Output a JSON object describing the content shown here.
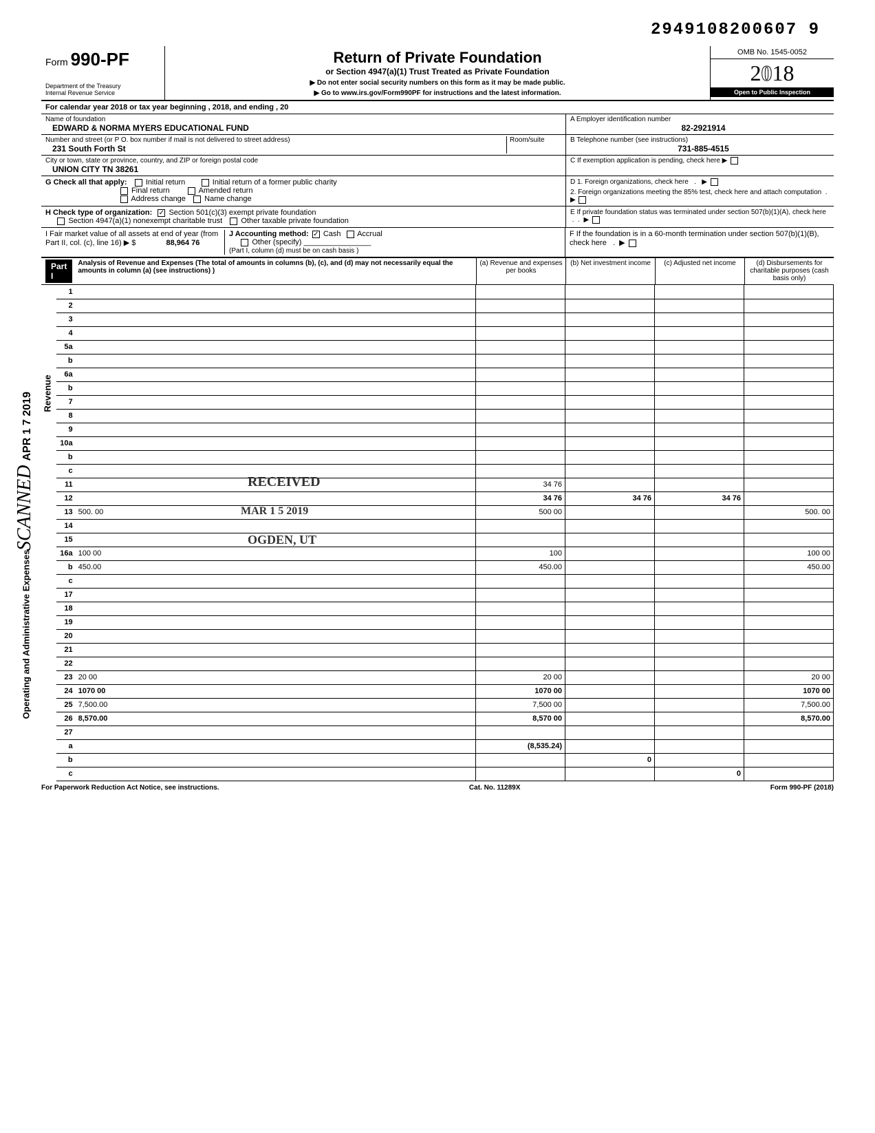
{
  "top_id": "2949108200607 9",
  "form": {
    "prefix": "Form",
    "number": "990-PF",
    "dept1": "Department of the Treasury",
    "dept2": "Internal Revenue Service",
    "title": "Return of Private Foundation",
    "subtitle": "or Section 4947(a)(1) Trust Treated as Private Foundation",
    "note1": "▶ Do not enter social security numbers on this form as it may be made public.",
    "note2": "▶ Go to www.irs.gov/Form990PF for instructions and the latest information.",
    "omb": "OMB No. 1545-0052",
    "year": "2018",
    "inspection": "Open to Public Inspection"
  },
  "calendar": "For calendar year 2018 or tax year beginning                                              , 2018, and ending                                    , 20",
  "foundation": {
    "name_label": "Name of foundation",
    "name": "EDWARD & NORMA MYERS EDUCATIONAL FUND",
    "addr_label": "Number and street (or P O. box number if mail is not delivered to street address)",
    "addr": "231 South Forth St",
    "room_label": "Room/suite",
    "city_label": "City or town, state or province, country, and ZIP or foreign postal code",
    "city": "UNION CITY          TN 38261",
    "ein_label": "A  Employer identification number",
    "ein": "82-2921914",
    "phone_label": "B  Telephone number (see instructions)",
    "phone": "731-885-4515",
    "c_label": "C  If exemption application is pending, check here ▶"
  },
  "sectionG": {
    "label": "G   Check all that apply:",
    "opts": [
      "Initial return",
      "Initial return of a former public charity",
      "Final return",
      "Amended return",
      "Address change",
      "Name change"
    ]
  },
  "sectionH": {
    "label": "H   Check type of organization:",
    "opt1": "Section 501(c)(3) exempt private foundation",
    "opt2": "Section 4947(a)(1) nonexempt charitable trust",
    "opt3": "Other taxable private foundation"
  },
  "sectionD": {
    "d1": "D  1. Foreign organizations, check here",
    "d2": "2. Foreign organizations meeting the 85% test, check here and attach computation",
    "e": "E  If private foundation status was terminated under section 507(b)(1)(A), check here",
    "f": "F  If the foundation is in a 60-month termination under section 507(b)(1)(B), check here"
  },
  "sectionI": {
    "i": "I    Fair market value of all assets at end of year (from Part II, col. (c), line 16) ▶ $",
    "i_val": "88,964 76",
    "j": "J   Accounting method:",
    "j_cash": "Cash",
    "j_accrual": "Accrual",
    "j_other": "Other (specify)",
    "j_note": "(Part I, column (d) must be on cash basis )"
  },
  "part1": {
    "label": "Part I",
    "title": "Analysis of Revenue and Expenses (The total of amounts in columns (b), (c), and (d) may not necessarily equal the amounts in column (a) (see instructions) )",
    "cols": [
      "(a) Revenue and expenses per books",
      "(b) Net investment income",
      "(c) Adjusted net income",
      "(d) Disbursements for charitable purposes (cash basis only)"
    ]
  },
  "side_labels": {
    "revenue": "Revenue",
    "expenses": "Operating and Administrative Expenses"
  },
  "stamps": {
    "received": "RECEIVED",
    "date": "MAR 1 5 2019",
    "ogden": "OGDEN, UT",
    "scanned": "SCANNED APR 1 7 2019"
  },
  "lines": [
    {
      "n": "1",
      "d": "",
      "a": "",
      "b": "",
      "c": ""
    },
    {
      "n": "2",
      "d": "",
      "a": "",
      "b": "",
      "c": "",
      "shade_bcd": true
    },
    {
      "n": "3",
      "d": "",
      "a": "",
      "b": "",
      "c": ""
    },
    {
      "n": "4",
      "d": "",
      "a": "",
      "b": "",
      "c": ""
    },
    {
      "n": "5a",
      "d": "",
      "a": "",
      "b": "",
      "c": ""
    },
    {
      "n": "b",
      "d": "",
      "a": "",
      "b": "",
      "c": "",
      "shade_bcd": true
    },
    {
      "n": "6a",
      "d": "",
      "a": "",
      "b": "",
      "c": ""
    },
    {
      "n": "b",
      "d": "",
      "a": "",
      "b": "",
      "c": "",
      "shade_bcd": true
    },
    {
      "n": "7",
      "d": "",
      "a": "",
      "b": "",
      "c": ""
    },
    {
      "n": "8",
      "d": "",
      "a": "",
      "b": "",
      "c": ""
    },
    {
      "n": "9",
      "d": "",
      "a": "",
      "b": "",
      "c": ""
    },
    {
      "n": "10a",
      "d": "",
      "a": "",
      "b": "",
      "c": "",
      "shade_bcd": true
    },
    {
      "n": "b",
      "d": "",
      "a": "",
      "b": "",
      "c": "",
      "shade_bcd": true
    },
    {
      "n": "c",
      "d": "",
      "a": "",
      "b": "",
      "c": ""
    },
    {
      "n": "11",
      "d": "",
      "a": "34 76",
      "b": "",
      "c": ""
    },
    {
      "n": "12",
      "d": "",
      "a": "34 76",
      "b": "34 76",
      "c": "34 76",
      "bold": true
    },
    {
      "n": "13",
      "d": "500. 00",
      "a": "500 00",
      "b": "",
      "c": ""
    },
    {
      "n": "14",
      "d": "",
      "a": "",
      "b": "",
      "c": ""
    },
    {
      "n": "15",
      "d": "",
      "a": "",
      "b": "",
      "c": ""
    },
    {
      "n": "16a",
      "d": "100 00",
      "a": "100",
      "b": "",
      "c": ""
    },
    {
      "n": "b",
      "d": "450.00",
      "a": "450.00",
      "b": "",
      "c": ""
    },
    {
      "n": "c",
      "d": "",
      "a": "",
      "b": "",
      "c": ""
    },
    {
      "n": "17",
      "d": "",
      "a": "",
      "b": "",
      "c": ""
    },
    {
      "n": "18",
      "d": "",
      "a": "",
      "b": "",
      "c": ""
    },
    {
      "n": "19",
      "d": "",
      "a": "",
      "b": "",
      "c": ""
    },
    {
      "n": "20",
      "d": "",
      "a": "",
      "b": "",
      "c": ""
    },
    {
      "n": "21",
      "d": "",
      "a": "",
      "b": "",
      "c": ""
    },
    {
      "n": "22",
      "d": "",
      "a": "",
      "b": "",
      "c": ""
    },
    {
      "n": "23",
      "d": "20 00",
      "a": "20 00",
      "b": "",
      "c": ""
    },
    {
      "n": "24",
      "d": "1070 00",
      "a": "1070 00",
      "b": "",
      "c": "",
      "bold": true
    },
    {
      "n": "25",
      "d": "7,500.00",
      "a": "7,500 00",
      "b": "",
      "c": ""
    },
    {
      "n": "26",
      "d": "8,570.00",
      "a": "8,570 00",
      "b": "",
      "c": "",
      "bold": true
    },
    {
      "n": "27",
      "d": "",
      "a": "",
      "b": "",
      "c": "",
      "shade_bcd": true
    },
    {
      "n": "a",
      "d": "",
      "a": "(8,535.24)",
      "b": "",
      "c": "",
      "bold": true
    },
    {
      "n": "b",
      "d": "",
      "a": "",
      "b": "0",
      "c": "",
      "bold": true
    },
    {
      "n": "c",
      "d": "",
      "a": "",
      "b": "",
      "c": "0",
      "bold": true
    }
  ],
  "footer": {
    "left": "For Paperwork Reduction Act Notice, see instructions.",
    "center": "Cat. No. 11289X",
    "right": "Form 990-PF (2018)"
  }
}
